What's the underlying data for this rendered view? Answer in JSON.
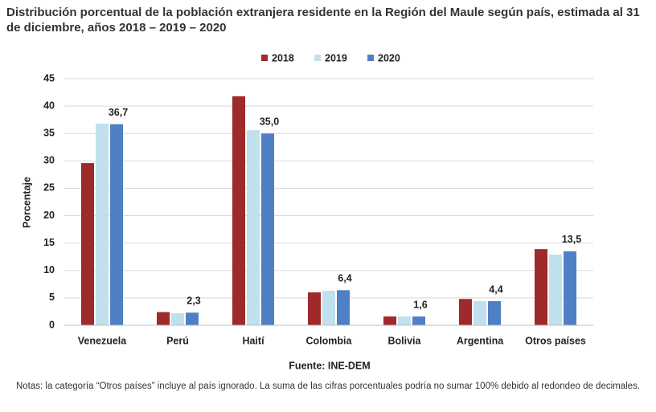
{
  "chart_data": {
    "type": "bar",
    "title": "Distribución porcentual de la población extranjera residente en la Región del Maule según país, estimada al 31 de diciembre, años 2018 – 2019 – 2020",
    "y_label": "Porcentaje",
    "categories": [
      "Venezuela",
      "Perú",
      "Haití",
      "Colombia",
      "Bolivia",
      "Argentina",
      "Otros países"
    ],
    "series": [
      {
        "name": "2018",
        "color": "#9e2a2b",
        "values": [
          29.6,
          2.4,
          41.8,
          6.0,
          1.6,
          4.8,
          13.9
        ]
      },
      {
        "name": "2019",
        "color": "#bfe0ec",
        "values": [
          36.8,
          2.2,
          35.6,
          6.3,
          1.6,
          4.4,
          12.9
        ]
      },
      {
        "name": "2020",
        "color": "#4f7fc4",
        "values": [
          36.7,
          2.3,
          35.0,
          6.4,
          1.6,
          4.4,
          13.5
        ],
        "value_labels": [
          "36,7",
          "2,3",
          "35,0",
          "6,4",
          "1,6",
          "4,4",
          "13,5"
        ]
      }
    ],
    "ylim": [
      0,
      45
    ],
    "yticks": [
      0,
      5,
      10,
      15,
      20,
      25,
      30,
      35,
      40,
      45
    ],
    "grid": true,
    "legend": "top",
    "source": "Fuente: INE-DEM",
    "notes": "Notas: la categoría “Otros países” incluye al país ignorado. La suma de las cifras porcentuales podría no sumar 100% debido al redondeo de decimales."
  }
}
